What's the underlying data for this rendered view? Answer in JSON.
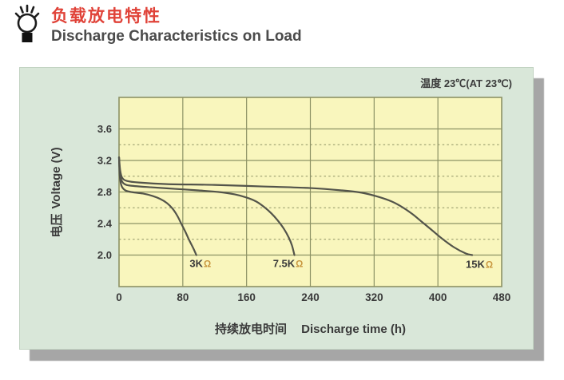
{
  "header": {
    "title_zh": "负载放电特性",
    "title_en": "Discharge Characteristics on Load"
  },
  "panel": {
    "temperature_label": "温度 23℃(AT 23℃)"
  },
  "colors": {
    "title_red": "#e04238",
    "title_dark": "#4b4b4b",
    "panel_bg": "#d9e7d9",
    "shadow": "#a6a6a6",
    "plot_bg": "#f9f6bd",
    "grid": "#8d9265",
    "curve": "#53544a",
    "axis_text": "#3a3a3a",
    "omega": "#c9973f"
  },
  "chart_data": {
    "type": "line",
    "title_zh": "负载放电特性",
    "title_en": "Discharge Characteristics on Load",
    "annotation": "温度 23℃(AT 23℃)",
    "xlabel_zh": "持续放电时间",
    "xlabel_en": "Discharge time (h)",
    "ylabel_zh": "电压",
    "ylabel_en": "Voltage (V)",
    "xlim": [
      0,
      480
    ],
    "ylim": [
      1.6,
      4.0
    ],
    "x_ticks": [
      0,
      80,
      160,
      240,
      320,
      400,
      480
    ],
    "y_ticks": [
      2.0,
      2.4,
      2.8,
      3.2,
      3.6
    ],
    "y_minor_dashed": [
      2.2,
      2.6,
      3.0,
      3.4
    ],
    "grid": "vertical-solid + horizontal-major-solid + horizontal-minor-dashed",
    "legend_position": "inline labels below curve ends",
    "series": [
      {
        "name": "3K",
        "unit": "Ω",
        "label_at": [
          102,
          1.85
        ],
        "points": [
          [
            0,
            3.24
          ],
          [
            0.8,
            3.02
          ],
          [
            2,
            2.92
          ],
          [
            4,
            2.86
          ],
          [
            8,
            2.82
          ],
          [
            15,
            2.8
          ],
          [
            30,
            2.78
          ],
          [
            42,
            2.75
          ],
          [
            52,
            2.71
          ],
          [
            60,
            2.66
          ],
          [
            67,
            2.59
          ],
          [
            73,
            2.5
          ],
          [
            78,
            2.4
          ],
          [
            83,
            2.3
          ],
          [
            88,
            2.19
          ],
          [
            93,
            2.09
          ],
          [
            97,
            2.0
          ]
        ]
      },
      {
        "name": "7.5K",
        "unit": "Ω",
        "label_at": [
          212,
          1.85
        ],
        "points": [
          [
            0,
            3.24
          ],
          [
            1,
            3.05
          ],
          [
            3,
            2.95
          ],
          [
            7,
            2.9
          ],
          [
            15,
            2.88
          ],
          [
            40,
            2.86
          ],
          [
            70,
            2.84
          ],
          [
            100,
            2.82
          ],
          [
            125,
            2.8
          ],
          [
            145,
            2.77
          ],
          [
            160,
            2.73
          ],
          [
            172,
            2.68
          ],
          [
            182,
            2.61
          ],
          [
            191,
            2.53
          ],
          [
            199,
            2.44
          ],
          [
            207,
            2.33
          ],
          [
            213,
            2.22
          ],
          [
            217,
            2.12
          ],
          [
            220,
            2.0
          ]
        ]
      },
      {
        "name": "15K",
        "unit": "Ω",
        "label_at": [
          452,
          1.84
        ],
        "points": [
          [
            0,
            3.24
          ],
          [
            1.5,
            3.07
          ],
          [
            4,
            2.98
          ],
          [
            10,
            2.94
          ],
          [
            25,
            2.92
          ],
          [
            60,
            2.9
          ],
          [
            120,
            2.89
          ],
          [
            180,
            2.87
          ],
          [
            240,
            2.85
          ],
          [
            280,
            2.82
          ],
          [
            305,
            2.79
          ],
          [
            325,
            2.74
          ],
          [
            342,
            2.68
          ],
          [
            355,
            2.61
          ],
          [
            368,
            2.52
          ],
          [
            380,
            2.42
          ],
          [
            392,
            2.32
          ],
          [
            405,
            2.21
          ],
          [
            420,
            2.1
          ],
          [
            435,
            2.02
          ],
          [
            443,
            2.0
          ]
        ]
      }
    ]
  }
}
